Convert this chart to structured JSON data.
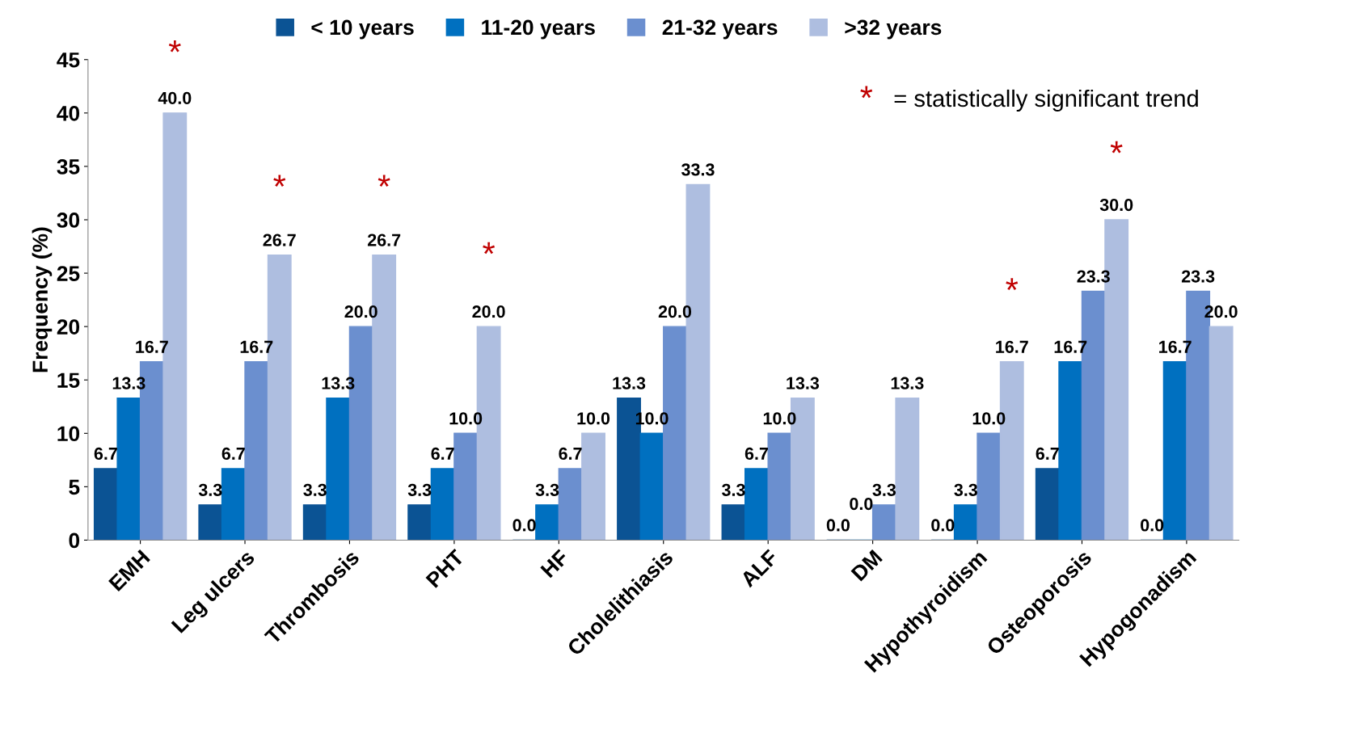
{
  "chart_data": {
    "type": "bar",
    "ylabel": "Frequency (%)",
    "categories": [
      "EMH",
      "Leg ulcers",
      "Thrombosis",
      "PHT",
      "HF",
      "Cholelithiasis",
      "ALF",
      "DM",
      "Hypothyroidism",
      "Osteoporosis",
      "Hypogonadism"
    ],
    "series": [
      {
        "name": "< 10 years",
        "color": "#0b5394",
        "values": [
          6.7,
          3.3,
          3.3,
          3.3,
          0.0,
          13.3,
          3.3,
          0.0,
          0.0,
          6.7,
          0.0
        ],
        "value_labels": [
          "6.7",
          "3.3",
          "3.3",
          "3.3",
          "0.0",
          "13.3",
          "3.3",
          "0.0",
          "0.0",
          "6.7",
          "0.0"
        ]
      },
      {
        "name": "11-20 years",
        "color": "#0070c0",
        "values": [
          13.3,
          6.7,
          13.3,
          6.7,
          3.3,
          10.0,
          6.7,
          0.0,
          3.3,
          16.7,
          16.7
        ],
        "value_labels": [
          "13.3",
          "6.7",
          "13.3",
          "6.7",
          "3.3",
          "10.0",
          "6.7",
          "0.0",
          "3.3",
          "16.7",
          "16.7"
        ]
      },
      {
        "name": "21-32 years",
        "color": "#6b8fcf",
        "values": [
          16.7,
          16.7,
          20.0,
          10.0,
          6.7,
          20.0,
          10.0,
          3.3,
          10.0,
          23.3,
          23.3
        ],
        "value_labels": [
          "16.7",
          "16.7",
          "20.0",
          "10.0",
          "6.7",
          "20.0",
          "10.0",
          "3.3",
          "10.0",
          "23.3",
          "23.3"
        ]
      },
      {
        "name": ">32 years",
        "color": "#aebee0",
        "values": [
          40.0,
          26.7,
          26.7,
          20.0,
          10.0,
          33.3,
          13.3,
          13.3,
          16.7,
          30.0,
          20.0
        ],
        "value_labels": [
          "40.0",
          "26.7",
          "26.7",
          "20.0",
          "10.0",
          "33.3",
          "13.3",
          "13.3",
          "16.7",
          "30.0",
          "20.0"
        ]
      }
    ],
    "ylim": [
      0,
      45
    ],
    "yticks": [
      0,
      5,
      10,
      15,
      20,
      25,
      30,
      35,
      40,
      45
    ],
    "legend": "top",
    "annotations": [
      "*",
      "*",
      "*",
      "*",
      "*",
      "*",
      "* = statistically significant trend"
    ]
  }
}
